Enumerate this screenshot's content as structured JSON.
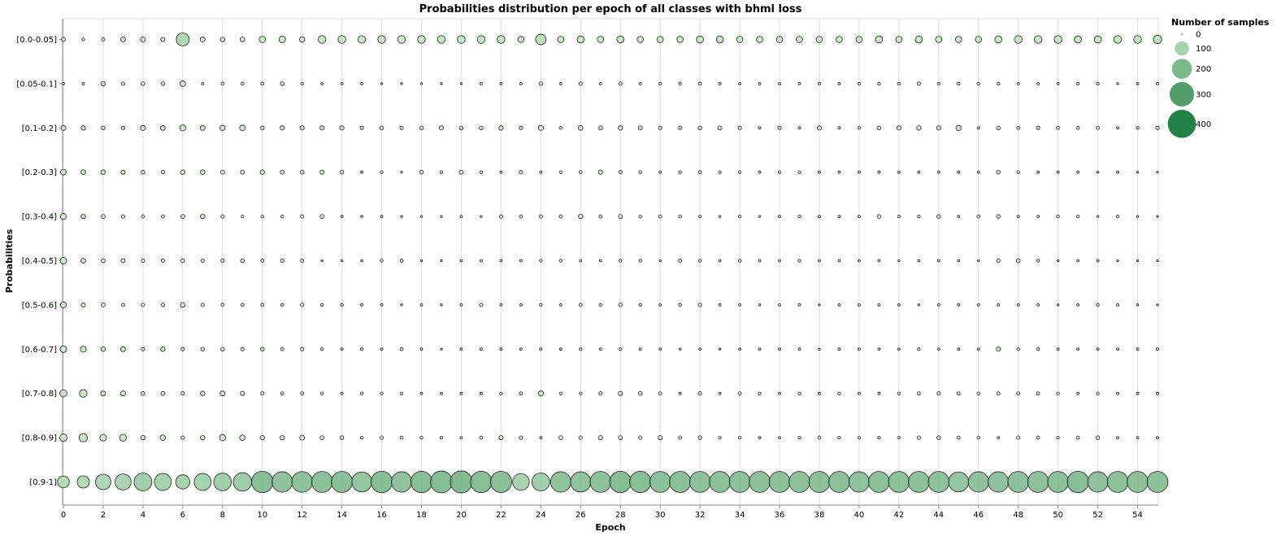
{
  "chart_data": {
    "type": "scatter",
    "title": "Probabilities distribution per epoch of all classes with bhml loss",
    "xlabel": "Epoch",
    "ylabel": "Probabilities",
    "xlim": [
      0,
      55
    ],
    "x_ticks": [
      0,
      2,
      4,
      6,
      8,
      10,
      12,
      14,
      16,
      18,
      20,
      22,
      24,
      26,
      28,
      30,
      32,
      34,
      36,
      38,
      40,
      42,
      44,
      46,
      48,
      50,
      52,
      54
    ],
    "categories": [
      "[0.0-0.05]",
      "[0.05-0.1]",
      "[0.1-0.2]",
      "[0.2-0.3]",
      "[0.3-0.4]",
      "[0.4-0.5]",
      "[0.5-0.6]",
      "[0.6-0.7]",
      "[0.7-0.8]",
      "[0.8-0.9]",
      "[0.9-1]"
    ],
    "grid": "vertical",
    "legend": {
      "title": "Number of samples",
      "position": "top-right",
      "values": [
        0,
        100,
        200,
        300,
        400
      ]
    },
    "size_max": 480,
    "color_scale": [
      "#d4efce",
      "#006d2c"
    ],
    "stroke_color": "#222222",
    "series": [
      {
        "category": "[0.0-0.05]",
        "values": [
          8,
          4,
          5,
          12,
          12,
          9,
          85,
          12,
          10,
          11,
          20,
          22,
          14,
          30,
          30,
          28,
          30,
          30,
          30,
          30,
          30,
          30,
          30,
          18,
          55,
          20,
          25,
          20,
          25,
          20,
          20,
          20,
          25,
          25,
          20,
          20,
          20,
          20,
          20,
          20,
          20,
          25,
          20,
          25,
          20,
          20,
          20,
          25,
          30,
          30,
          30,
          25,
          25,
          30,
          30,
          35
        ]
      },
      {
        "category": "[0.05-0.1]",
        "values": [
          3,
          3,
          10,
          6,
          7,
          7,
          16,
          3,
          5,
          5,
          5,
          7,
          4,
          3,
          3,
          3,
          2,
          2,
          2,
          2,
          2,
          3,
          3,
          3,
          7,
          3,
          6,
          3,
          6,
          3,
          4,
          4,
          5,
          4,
          3,
          3,
          3,
          3,
          3,
          3,
          4,
          4,
          4,
          6,
          4,
          4,
          4,
          4,
          3,
          3,
          3,
          4,
          4,
          2,
          3,
          3
        ]
      },
      {
        "category": "[0.1-0.2]",
        "values": [
          12,
          10,
          7,
          6,
          13,
          12,
          18,
          12,
          14,
          16,
          7,
          9,
          9,
          9,
          9,
          6,
          7,
          6,
          7,
          9,
          7,
          7,
          10,
          6,
          13,
          4,
          11,
          8,
          10,
          8,
          6,
          6,
          7,
          8,
          6,
          3,
          6,
          3,
          9,
          3,
          4,
          7,
          9,
          10,
          9,
          14,
          3,
          7,
          5,
          6,
          5,
          5,
          5,
          3,
          4,
          6
        ]
      },
      {
        "category": "[0.2-0.3]",
        "values": [
          16,
          11,
          11,
          9,
          7,
          6,
          10,
          11,
          8,
          8,
          10,
          8,
          7,
          9,
          7,
          3,
          4,
          1,
          7,
          4,
          8,
          4,
          3,
          6,
          3,
          4,
          5,
          9,
          6,
          4,
          3,
          4,
          5,
          4,
          4,
          3,
          4,
          4,
          3,
          3,
          3,
          3,
          3,
          3,
          3,
          3,
          3,
          7,
          4,
          3,
          3,
          3,
          2,
          3,
          0,
          1
        ]
      },
      {
        "category": "[0.3-0.4]",
        "values": [
          18,
          10,
          8,
          6,
          5,
          5,
          8,
          10,
          6,
          4,
          4,
          4,
          6,
          8,
          3,
          2,
          3,
          2,
          2,
          2,
          3,
          2,
          6,
          5,
          6,
          5,
          10,
          5,
          8,
          4,
          5,
          4,
          3,
          1,
          4,
          2,
          3,
          4,
          3,
          3,
          3,
          7,
          4,
          4,
          7,
          3,
          5,
          7,
          3,
          3,
          4,
          4,
          2,
          4,
          2,
          2
        ]
      },
      {
        "category": "[0.4-0.5]",
        "values": [
          22,
          11,
          8,
          9,
          6,
          6,
          7,
          6,
          6,
          7,
          5,
          6,
          5,
          2,
          2,
          2,
          4,
          5,
          2,
          0,
          3,
          3,
          3,
          3,
          4,
          4,
          3,
          3,
          4,
          4,
          2,
          5,
          4,
          3,
          4,
          3,
          3,
          4,
          3,
          3,
          3,
          3,
          2,
          3,
          3,
          3,
          2,
          6,
          8,
          4,
          2,
          3,
          3,
          2,
          2,
          2
        ]
      },
      {
        "category": "[0.5-0.6]",
        "values": [
          18,
          9,
          8,
          5,
          6,
          7,
          11,
          6,
          5,
          5,
          5,
          4,
          6,
          4,
          4,
          3,
          3,
          2,
          3,
          2,
          3,
          6,
          3,
          3,
          4,
          3,
          5,
          4,
          6,
          4,
          3,
          4,
          6,
          3,
          3,
          2,
          3,
          3,
          2,
          3,
          3,
          3,
          3,
          2,
          3,
          3,
          3,
          3,
          3,
          3,
          2,
          3,
          4,
          3,
          2,
          2
        ]
      },
      {
        "category": "[0.6-0.7]",
        "values": [
          22,
          18,
          10,
          12,
          6,
          10,
          6,
          7,
          7,
          6,
          7,
          5,
          6,
          4,
          3,
          4,
          3,
          5,
          3,
          2,
          3,
          3,
          3,
          3,
          3,
          3,
          4,
          3,
          4,
          3,
          3,
          2,
          3,
          2,
          3,
          3,
          3,
          3,
          2,
          3,
          3,
          3,
          3,
          4,
          3,
          3,
          3,
          9,
          4,
          4,
          3,
          3,
          3,
          3,
          3,
          3
        ]
      },
      {
        "category": "[0.7-0.8]",
        "values": [
          25,
          30,
          12,
          13,
          7,
          8,
          6,
          10,
          12,
          9,
          6,
          5,
          5,
          4,
          3,
          4,
          4,
          4,
          3,
          3,
          3,
          3,
          4,
          5,
          14,
          4,
          4,
          6,
          9,
          7,
          5,
          3,
          6,
          3,
          5,
          4,
          3,
          4,
          3,
          4,
          3,
          3,
          4,
          5,
          6,
          5,
          4,
          5,
          5,
          5,
          4,
          3,
          4,
          3,
          3,
          3
        ]
      },
      {
        "category": "[0.8-0.9]",
        "values": [
          28,
          35,
          22,
          24,
          10,
          15,
          6,
          10,
          19,
          15,
          10,
          10,
          12,
          8,
          7,
          4,
          6,
          5,
          4,
          4,
          3,
          5,
          9,
          6,
          3,
          8,
          6,
          9,
          8,
          6,
          9,
          5,
          7,
          4,
          4,
          3,
          3,
          4,
          5,
          4,
          4,
          4,
          4,
          6,
          7,
          5,
          4,
          3,
          6,
          5,
          4,
          5,
          7,
          3,
          3,
          3
        ]
      },
      {
        "category": "[0.9-1]",
        "values": [
          70,
          75,
          120,
          130,
          160,
          145,
          100,
          145,
          155,
          170,
          230,
          210,
          215,
          220,
          225,
          200,
          230,
          210,
          230,
          240,
          245,
          230,
          225,
          140,
          160,
          210,
          205,
          220,
          230,
          230,
          220,
          225,
          220,
          220,
          220,
          220,
          220,
          220,
          220,
          220,
          210,
          220,
          220,
          220,
          220,
          200,
          210,
          210,
          220,
          220,
          220,
          230,
          210,
          220,
          220,
          220
        ]
      }
    ]
  }
}
